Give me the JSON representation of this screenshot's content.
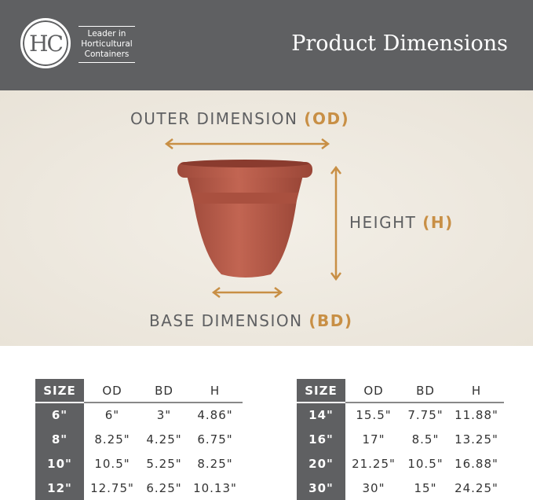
{
  "header": {
    "logo_text": "HC",
    "tagline": [
      "Leader in",
      "Horticultural",
      "Containers"
    ],
    "title": "Product Dimensions"
  },
  "diagram": {
    "outer": {
      "label": "OUTER DIMENSION",
      "abbr": "(OD)"
    },
    "height": {
      "label": "HEIGHT",
      "abbr": "(H)"
    },
    "base": {
      "label": "BASE DIMENSION",
      "abbr": "(BD)"
    },
    "accent_color": "#c88f45",
    "pot_color": "#b85a48"
  },
  "tables": [
    {
      "headers": [
        "SIZE",
        "OD",
        "BD",
        "H"
      ],
      "rows": [
        [
          "6\"",
          "6\"",
          "3\"",
          "4.86\""
        ],
        [
          "8\"",
          "8.25\"",
          "4.25\"",
          "6.75\""
        ],
        [
          "10\"",
          "10.5\"",
          "5.25\"",
          "8.25\""
        ],
        [
          "12\"",
          "12.75\"",
          "6.25\"",
          "10.13\""
        ]
      ]
    },
    {
      "headers": [
        "SIZE",
        "OD",
        "BD",
        "H"
      ],
      "rows": [
        [
          "14\"",
          "15.5\"",
          "7.75\"",
          "11.88\""
        ],
        [
          "16\"",
          "17\"",
          "8.5\"",
          "13.25\""
        ],
        [
          "20\"",
          "21.25\"",
          "10.5\"",
          "16.88\""
        ],
        [
          "30\"",
          "30\"",
          "15\"",
          "24.25\""
        ]
      ]
    }
  ]
}
